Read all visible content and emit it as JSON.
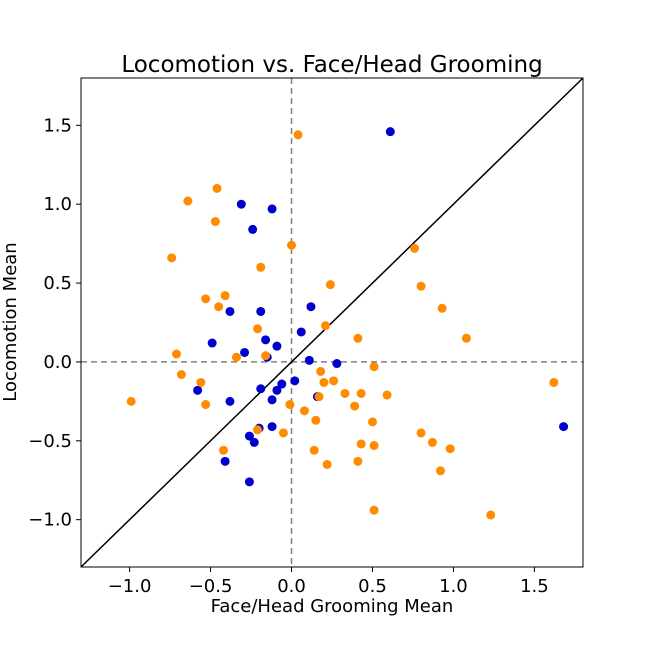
{
  "chart_data": {
    "type": "scatter",
    "title": "Locomotion vs. Face/Head Grooming",
    "xlabel": "Face/Head Grooming Mean",
    "ylabel": "Locomotion Mean",
    "xlim": [
      -1.3,
      1.8
    ],
    "ylim": [
      -1.3,
      1.8
    ],
    "xticks": [
      -1.0,
      -0.5,
      0.0,
      0.5,
      1.0,
      1.5
    ],
    "yticks": [
      -1.0,
      -0.5,
      0.0,
      0.5,
      1.0,
      1.5
    ],
    "xtick_labels": [
      "−1.0",
      "−0.5",
      "0.0",
      "0.5",
      "1.0",
      "1.5"
    ],
    "ytick_labels": [
      "−1.0",
      "−0.5",
      "0.0",
      "0.5",
      "1.0",
      "1.5"
    ],
    "grid": false,
    "reference_lines": {
      "diagonal_y_equals_x": true,
      "horizontal_dashed_at_y": 0,
      "vertical_dashed_at_x": 0
    },
    "series": [
      {
        "color": "#0000cc",
        "x": [
          0.61,
          1.68,
          -0.31,
          -0.12,
          -0.24,
          -0.19,
          0.12,
          0.06,
          -0.38,
          -0.49,
          -0.29,
          -0.16,
          -0.09,
          -0.15,
          0.28,
          0.11,
          0.02,
          -0.06,
          -0.19,
          -0.09,
          -0.58,
          -0.38,
          -0.12,
          0.16,
          -0.12,
          -0.26,
          -0.23,
          -0.2,
          -0.41,
          -0.26
        ],
        "y": [
          1.46,
          -0.41,
          1.0,
          0.97,
          0.84,
          0.32,
          0.35,
          0.19,
          0.32,
          0.12,
          0.06,
          0.14,
          0.1,
          0.03,
          -0.01,
          0.01,
          -0.12,
          -0.14,
          -0.17,
          -0.18,
          -0.18,
          -0.25,
          -0.24,
          -0.22,
          -0.41,
          -0.47,
          -0.51,
          -0.42,
          -0.63,
          -0.76
        ]
      },
      {
        "color": "#ff8c00",
        "x": [
          0.04,
          -0.46,
          -0.64,
          -0.47,
          -0.74,
          -0.19,
          0.0,
          0.24,
          -0.53,
          -0.41,
          -0.45,
          -0.21,
          0.21,
          0.41,
          -0.71,
          -0.34,
          -0.16,
          0.18,
          0.2,
          0.26,
          0.33,
          0.43,
          0.51,
          0.59,
          0.76,
          0.8,
          0.93,
          1.08,
          -0.68,
          -0.56,
          -0.53,
          -0.99,
          -0.01,
          0.08,
          0.39,
          0.15,
          0.17,
          0.5,
          0.43,
          0.51,
          0.8,
          0.87,
          0.98,
          -0.42,
          -0.21,
          -0.05,
          0.14,
          0.22,
          0.41,
          0.92,
          0.51,
          1.23,
          1.62
        ],
        "y": [
          1.44,
          1.1,
          1.02,
          0.89,
          0.66,
          0.6,
          0.74,
          0.49,
          0.4,
          0.42,
          0.35,
          0.21,
          0.23,
          0.15,
          0.05,
          0.03,
          0.04,
          -0.06,
          -0.13,
          -0.12,
          -0.2,
          -0.2,
          -0.03,
          -0.21,
          0.72,
          0.48,
          0.34,
          0.15,
          -0.08,
          -0.13,
          -0.27,
          -0.25,
          -0.27,
          -0.31,
          -0.28,
          -0.37,
          -0.22,
          -0.38,
          -0.52,
          -0.53,
          -0.45,
          -0.51,
          -0.55,
          -0.56,
          -0.43,
          -0.45,
          -0.56,
          -0.65,
          -0.63,
          -0.69,
          -0.94,
          -0.97,
          -0.13
        ]
      }
    ]
  }
}
